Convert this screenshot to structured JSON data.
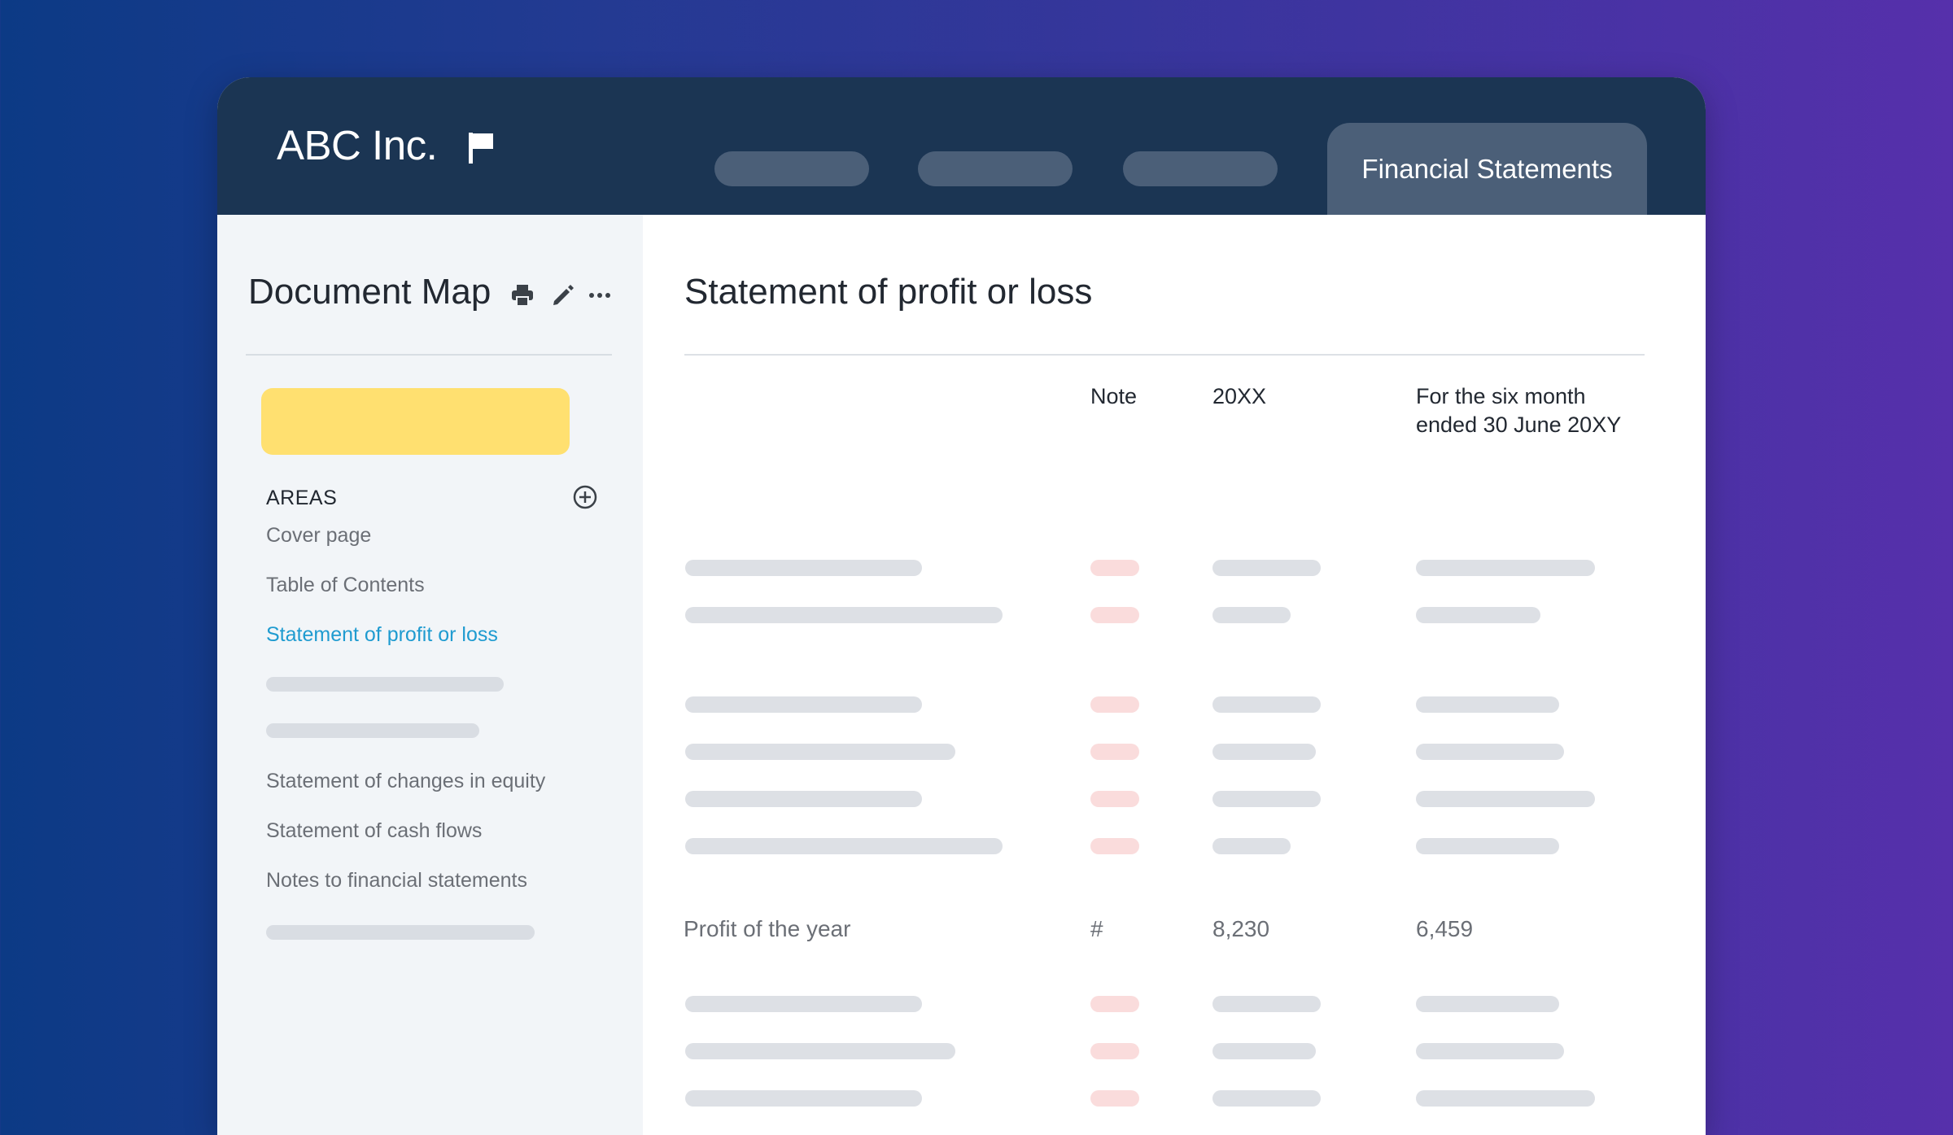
{
  "app": {
    "title": "ABC Inc.",
    "active_tab": "Financial Statements"
  },
  "sidebar": {
    "title": "Document Map",
    "areas_label": "AREAS",
    "items": [
      {
        "label": "Cover page"
      },
      {
        "label": "Table of Contents"
      },
      {
        "label": "Statement of profit or loss",
        "active": true
      },
      {
        "label": "Statement of changes in equity"
      },
      {
        "label": "Statement of cash flows"
      },
      {
        "label": "Notes to financial statements"
      }
    ]
  },
  "main": {
    "title": "Statement of profit or loss",
    "columns": {
      "note": "Note",
      "year": "20XX",
      "period": "For the six month ended 30 June 20XY"
    },
    "highlight_row": {
      "label": "Profit of the year",
      "note": "#",
      "year": "8,230",
      "period": "6,459"
    }
  },
  "colors": {
    "topbar": "#1b3553",
    "tab": "#4b5f78",
    "accent_link": "#1f9bd0",
    "highlight_block": "#ffe070",
    "note_placeholder": "#fadcdc"
  },
  "icons": [
    "flag-icon",
    "print-icon",
    "pencil-icon",
    "more-icon",
    "add-circle-icon"
  ]
}
